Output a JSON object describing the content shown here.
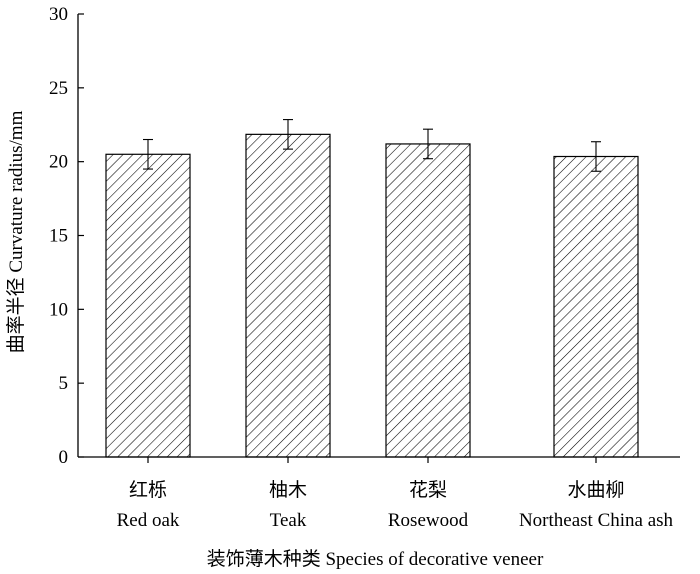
{
  "chart_data": {
    "type": "bar",
    "title": "",
    "xlabel": "装饰薄木种类 Species of decorative veneer",
    "ylabel": "曲率半径 Curvature radius/mm",
    "ylim": [
      0,
      30
    ],
    "yticks": [
      0,
      5,
      10,
      15,
      20,
      25,
      30
    ],
    "grid": false,
    "legend": "none",
    "bar_fill": "hatched",
    "categories": [
      {
        "zh": "红栎",
        "en": "Red oak"
      },
      {
        "zh": "柚木",
        "en": "Teak"
      },
      {
        "zh": "花梨",
        "en": "Rosewood"
      },
      {
        "zh": "水曲柳",
        "en": "Northeast China ash"
      }
    ],
    "values": [
      20.5,
      21.85,
      21.2,
      20.35
    ],
    "errors": [
      1.0,
      1.0,
      1.0,
      1.0
    ]
  }
}
